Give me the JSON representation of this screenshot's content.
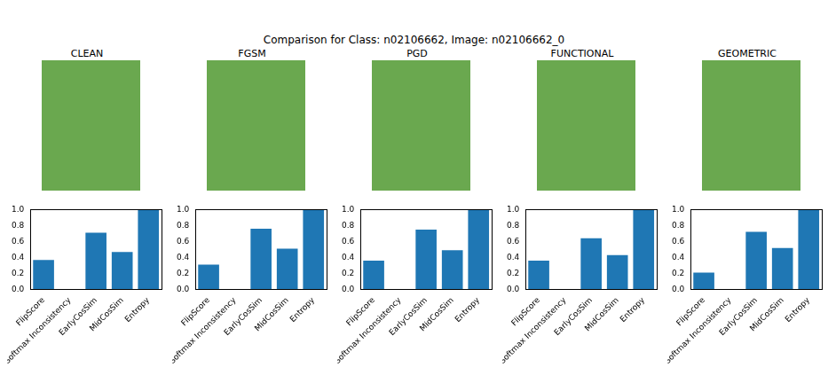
{
  "title": "Comparison for Class: n02106662, Image: n02106662_0",
  "chart_data": [
    {
      "type": "bar",
      "title": "CLEAN",
      "categories": [
        "FlipScore",
        "Softmax Inconsistency",
        "EarlyCosSim",
        "MidCosSim",
        "Entropy"
      ],
      "values": [
        0.37,
        0.005,
        0.71,
        0.47,
        1.0
      ],
      "color": "#1f77b4",
      "ylim": [
        0,
        1
      ],
      "yticks": [
        {
          "value": 0,
          "label": "0.0"
        },
        {
          "value": 0.2,
          "label": "0.2"
        },
        {
          "value": 0.4,
          "label": "0.4"
        },
        {
          "value": 0.6,
          "label": "0.6"
        },
        {
          "value": 0.8,
          "label": "0.8"
        },
        {
          "value": 1,
          "label": "1.0"
        }
      ],
      "grid": false
    },
    {
      "type": "bar",
      "title": "FGSM",
      "categories": [
        "FlipScore",
        "Softmax Inconsistency",
        "EarlyCosSim",
        "MidCosSim",
        "Entropy"
      ],
      "values": [
        0.31,
        0.005,
        0.76,
        0.51,
        1.0
      ],
      "color": "#1f77b4",
      "ylim": [
        0,
        1
      ],
      "yticks": [
        {
          "value": 0,
          "label": "0.0"
        },
        {
          "value": 0.2,
          "label": "0.2"
        },
        {
          "value": 0.4,
          "label": "0.4"
        },
        {
          "value": 0.6,
          "label": "0.6"
        },
        {
          "value": 0.8,
          "label": "0.8"
        },
        {
          "value": 1,
          "label": "1.0"
        }
      ],
      "grid": false
    },
    {
      "type": "bar",
      "title": "PGD",
      "categories": [
        "FlipScore",
        "Softmax Inconsistency",
        "EarlyCosSim",
        "MidCosSim",
        "Entropy"
      ],
      "values": [
        0.36,
        0.005,
        0.75,
        0.49,
        1.0
      ],
      "color": "#1f77b4",
      "ylim": [
        0,
        1
      ],
      "yticks": [
        {
          "value": 0,
          "label": "0.0"
        },
        {
          "value": 0.2,
          "label": "0.2"
        },
        {
          "value": 0.4,
          "label": "0.4"
        },
        {
          "value": 0.6,
          "label": "0.6"
        },
        {
          "value": 0.8,
          "label": "0.8"
        },
        {
          "value": 1,
          "label": "1.0"
        }
      ],
      "grid": false
    },
    {
      "type": "bar",
      "title": "FUNCTIONAL",
      "categories": [
        "FlipScore",
        "Softmax Inconsistency",
        "EarlyCosSim",
        "MidCosSim",
        "Entropy"
      ],
      "values": [
        0.36,
        0.005,
        0.64,
        0.43,
        1.0
      ],
      "color": "#1f77b4",
      "ylim": [
        0,
        1
      ],
      "yticks": [
        {
          "value": 0,
          "label": "0.0"
        },
        {
          "value": 0.2,
          "label": "0.2"
        },
        {
          "value": 0.4,
          "label": "0.4"
        },
        {
          "value": 0.6,
          "label": "0.6"
        },
        {
          "value": 0.8,
          "label": "0.8"
        },
        {
          "value": 1,
          "label": "1.0"
        }
      ],
      "grid": false
    },
    {
      "type": "bar",
      "title": "GEOMETRIC",
      "categories": [
        "FlipScore",
        "Softmax Inconsistency",
        "EarlyCosSim",
        "MidCosSim",
        "Entropy"
      ],
      "values": [
        0.21,
        0.005,
        0.72,
        0.52,
        1.0
      ],
      "color": "#1f77b4",
      "ylim": [
        0,
        1
      ],
      "yticks": [
        {
          "value": 0,
          "label": "0.0"
        },
        {
          "value": 0.2,
          "label": "0.2"
        },
        {
          "value": 0.4,
          "label": "0.4"
        },
        {
          "value": 0.6,
          "label": "0.6"
        },
        {
          "value": 0.8,
          "label": "0.8"
        },
        {
          "value": 1,
          "label": "1.0"
        }
      ],
      "grid": false
    }
  ]
}
